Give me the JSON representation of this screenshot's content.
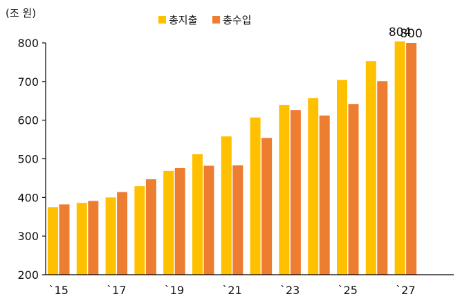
{
  "chart_data": {
    "type": "bar",
    "title": "",
    "unit_label": "(조 원)",
    "xlabel": "",
    "ylabel": "",
    "ylim": [
      200,
      800
    ],
    "y_ticks": [
      200,
      300,
      400,
      500,
      600,
      700,
      800
    ],
    "categories": [
      "2015",
      "2016",
      "2017",
      "2018",
      "2019",
      "2020",
      "2021",
      "2022",
      "2023",
      "2024",
      "2025",
      "2026",
      "2027"
    ],
    "x_tick_labels": [
      "`15",
      "`17",
      "`19",
      "`21",
      "`23",
      "`25",
      "`27"
    ],
    "legend_position": "top-center",
    "grid": false,
    "series": [
      {
        "name": "총지출",
        "color": "#FFC000",
        "values": [
          375,
          386,
          400,
          429,
          469,
          512,
          558,
          607,
          639,
          657,
          704,
          753,
          804
        ]
      },
      {
        "name": "총수입",
        "color": "#ED7D31",
        "values": [
          382,
          391,
          414,
          447,
          476,
          482,
          483,
          554,
          626,
          612,
          642,
          701,
          800
        ]
      }
    ],
    "data_labels": [
      {
        "series": 0,
        "index": 12,
        "text": "804"
      },
      {
        "series": 1,
        "index": 12,
        "text": "800"
      }
    ]
  }
}
